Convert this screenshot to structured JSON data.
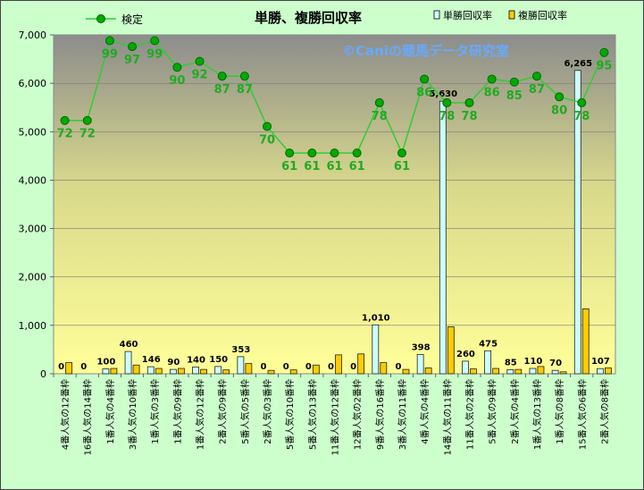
{
  "chart_data": {
    "type": "bar",
    "title": "単勝、複勝回収率",
    "watermark": "©Caniの競馬データ研究室",
    "categories": [
      "4番人気の12番枠",
      "16番人気の14番枠",
      "1番人気の4番枠",
      "3番人気の10番枠",
      "1番人気の3番枠",
      "1番人気の9番枠",
      "1番人気の12番枠",
      "2番人気の9番枠",
      "5番人気の5番枠",
      "2番人気の3番枠",
      "5番人気の10番枠",
      "5番人気の13番枠",
      "11番人気の12番枠",
      "12番人気の2番枠",
      "9番人気の16番枠",
      "3番人気の11番枠",
      "4番人気の4番枠",
      "14番人気の11番枠",
      "11番人気の2番枠",
      "5番人気の9番枠",
      "2番人気の4番枠",
      "1番人気の13番枠",
      "1番人気の8番枠",
      "15番人気の6番枠",
      "2番人気の8番枠"
    ],
    "ylim": [
      0,
      7000
    ],
    "yticks": [
      "0",
      "1,000",
      "2,000",
      "3,000",
      "4,000",
      "5,000",
      "6,000",
      "7,000"
    ],
    "ytick_values": [
      0,
      1000,
      2000,
      3000,
      4000,
      5000,
      6000,
      7000
    ],
    "grid": true,
    "legend": "top",
    "series": [
      {
        "name": "単勝回収率",
        "color": "#ccffff",
        "values": [
          0,
          0,
          100,
          460,
          146,
          90,
          140,
          150,
          353,
          0,
          0,
          0,
          0,
          0,
          1010,
          0,
          398,
          5630,
          260,
          475,
          85,
          110,
          70,
          6265,
          107
        ],
        "labels": [
          "0",
          "0",
          "100",
          "460",
          "146",
          "90",
          "140",
          "150",
          "353",
          "0",
          "0",
          "0",
          "0",
          "0",
          "1,010",
          "0",
          "398",
          "5,630",
          "260",
          "475",
          "85",
          "110",
          "70",
          "6,265",
          "107"
        ]
      },
      {
        "name": "複勝回収率",
        "color": "#ffcc00",
        "values": [
          230,
          0,
          110,
          180,
          110,
          110,
          90,
          80,
          210,
          70,
          80,
          180,
          390,
          410,
          230,
          90,
          120,
          970,
          100,
          110,
          90,
          150,
          40,
          1340,
          120
        ]
      }
    ],
    "line_series": {
      "name": "検定",
      "color": "#33cc33",
      "values": [
        72,
        72,
        99,
        97,
        99,
        90,
        92,
        87,
        87,
        70,
        61,
        61,
        61,
        61,
        78,
        61,
        86,
        78,
        78,
        86,
        85,
        87,
        80,
        78,
        95
      ],
      "labels": [
        "72",
        "72",
        "99",
        "97",
        "99",
        "90",
        "92",
        "87",
        "87",
        "70",
        "61",
        "61",
        "61",
        "61",
        "78",
        "61",
        "86",
        "78",
        "78",
        "86",
        "85",
        "87",
        "80",
        "78",
        "95"
      ],
      "scale_min": 61,
      "scale_max": 99,
      "plot_min": 4560,
      "plot_max": 6880
    }
  }
}
